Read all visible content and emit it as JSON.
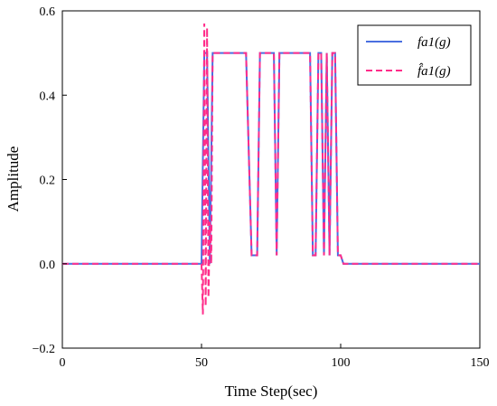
{
  "chart_data": {
    "type": "line",
    "title": "",
    "xlabel": "Time Step(sec)",
    "ylabel": "Amplitude",
    "xlim": [
      0,
      150
    ],
    "ylim": [
      -0.2,
      0.6
    ],
    "xticks": [
      0,
      50,
      100,
      150
    ],
    "xtick_labels": [
      "0",
      "50",
      "100",
      "150"
    ],
    "yticks": [
      -0.2,
      0.0,
      0.2,
      0.4,
      0.6
    ],
    "ytick_labels": [
      "−0.2",
      "0.0",
      "0.2",
      "0.4",
      "0.6"
    ],
    "grid": false,
    "legend_position": "top-right",
    "series": [
      {
        "name": "fa1(g)",
        "color": "#4a6fe0",
        "style": "solid",
        "x": [
          0,
          50,
          51,
          52,
          53,
          54,
          55,
          66,
          68,
          70,
          71,
          76,
          77,
          78,
          89,
          90,
          91,
          92,
          93,
          94,
          95,
          96,
          97,
          98,
          99,
          100,
          101,
          150
        ],
        "y": [
          0.0,
          0.0,
          0.5,
          0.5,
          0.0,
          0.5,
          0.5,
          0.5,
          0.02,
          0.02,
          0.5,
          0.5,
          0.02,
          0.5,
          0.5,
          0.02,
          0.02,
          0.5,
          0.5,
          0.02,
          0.5,
          0.02,
          0.5,
          0.5,
          0.02,
          0.02,
          0.0,
          0.0
        ]
      },
      {
        "name": "f̂a1(g)",
        "color": "#ff2d8a",
        "style": "dashed",
        "x": [
          0,
          50,
          50.5,
          51,
          51.5,
          52,
          52.5,
          53,
          53.5,
          54,
          55,
          66,
          68,
          70,
          71,
          76,
          77,
          78,
          89,
          90,
          91,
          92,
          93,
          94,
          95,
          96,
          97,
          98,
          99,
          100,
          101,
          150
        ],
        "y": [
          0.0,
          0.0,
          -0.12,
          0.57,
          -0.1,
          0.56,
          -0.08,
          0.1,
          0.0,
          0.5,
          0.5,
          0.5,
          0.02,
          0.02,
          0.5,
          0.5,
          0.02,
          0.5,
          0.5,
          0.02,
          0.02,
          0.5,
          0.5,
          0.02,
          0.5,
          0.02,
          0.5,
          0.5,
          0.02,
          0.02,
          0.0,
          0.0
        ]
      }
    ]
  }
}
